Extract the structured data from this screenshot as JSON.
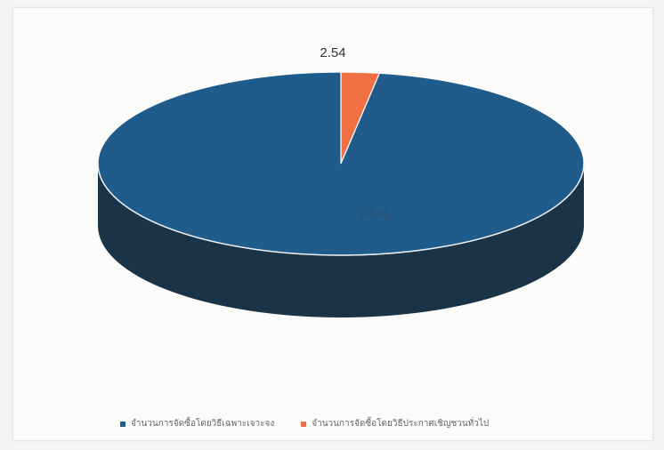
{
  "chart_data": {
    "type": "pie",
    "title": "",
    "slices": [
      {
        "label": "จำนวนการจัดซื้อโดยวิธีเฉพาะเจาะจง",
        "value": 97.46,
        "color": "#1f5c8c",
        "side_color": "#1b3347"
      },
      {
        "label": "จำนวนการจัดซื้อโดยวิธีประกาศเชิญชวนทั่วไป",
        "value": 2.54,
        "color": "#f07044",
        "side_color": "#8a3a1e"
      }
    ],
    "legend_position": "bottom",
    "data_labels": [
      "97.46",
      "2.54"
    ],
    "style": "3d"
  }
}
